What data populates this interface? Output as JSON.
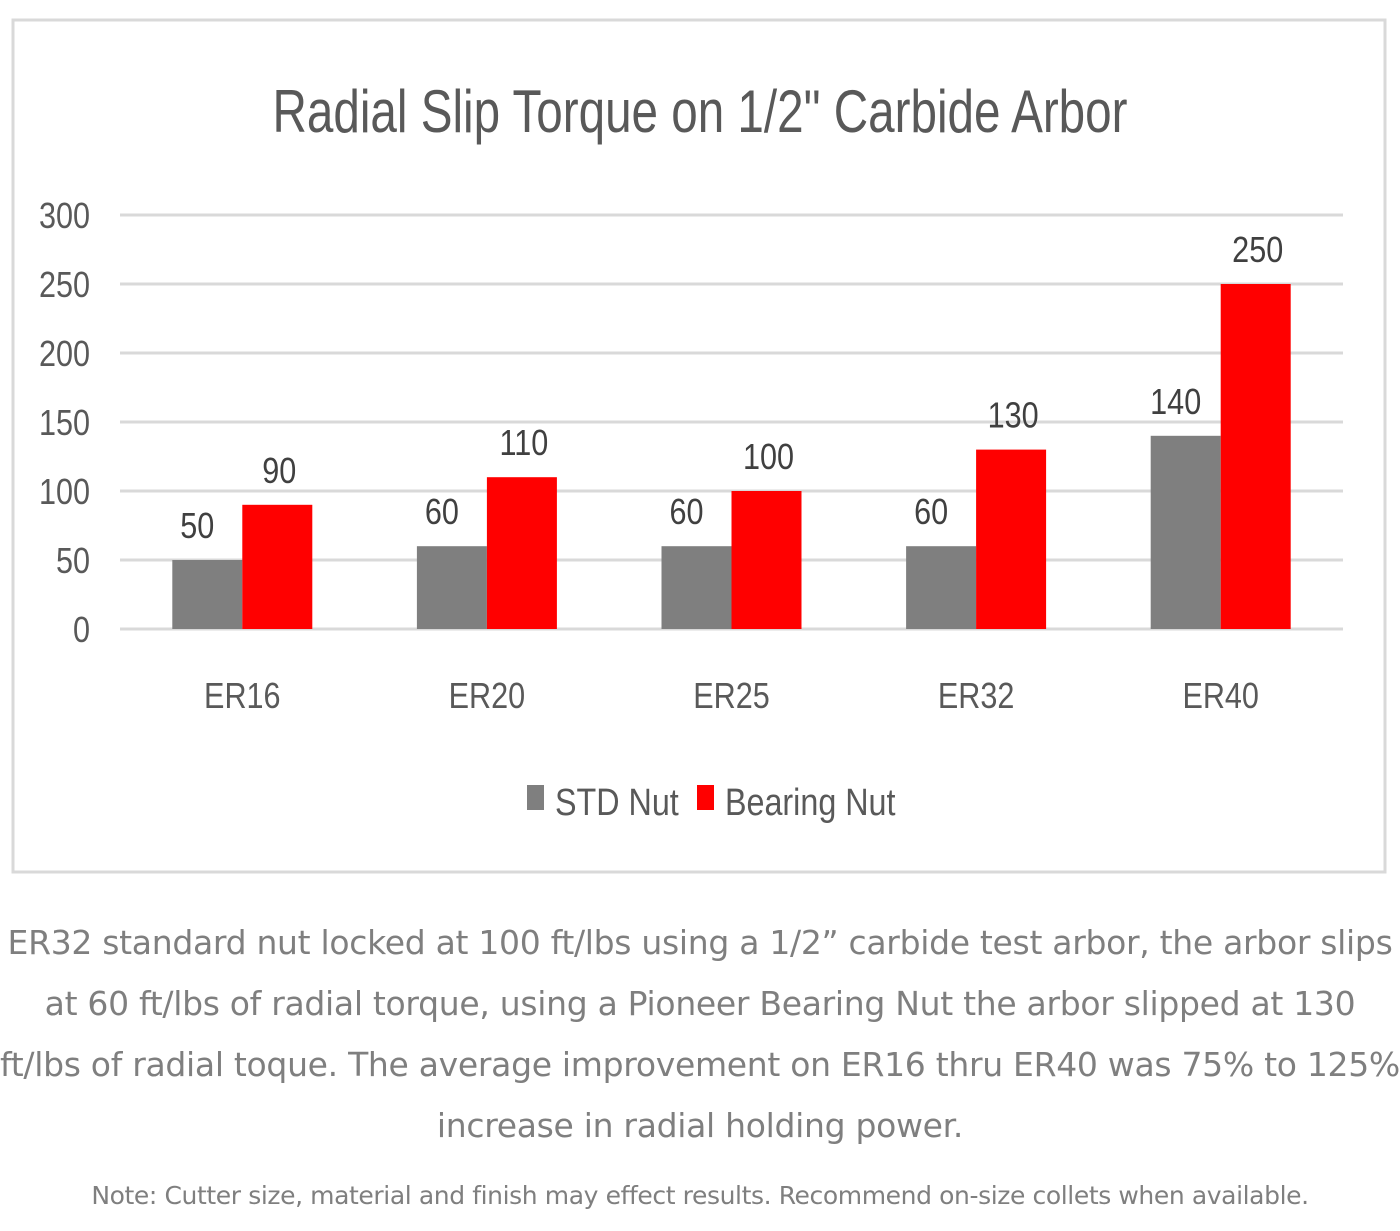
{
  "chart_data": {
    "type": "bar",
    "title": "Radial Slip Torque on 1/2\" Carbide Arbor",
    "xlabel": "",
    "ylabel": "",
    "categories": [
      "ER16",
      "ER20",
      "ER25",
      "ER32",
      "ER40"
    ],
    "series": [
      {
        "name": "STD Nut",
        "values": [
          50,
          60,
          60,
          60,
          140
        ],
        "color": "#7f7f7f"
      },
      {
        "name": "Bearing Nut",
        "values": [
          90,
          110,
          100,
          130,
          250
        ],
        "color": "#ff0000"
      }
    ],
    "ylim": [
      0,
      300
    ],
    "yticks": [
      0,
      50,
      100,
      150,
      200,
      250,
      300
    ],
    "grid": true,
    "legend": "bottom",
    "data_labels": true
  },
  "caption": {
    "body": "ER32 standard nut locked at 100 ft/lbs using a 1/2” carbide test arbor, the arbor slips at 60 ft/lbs of radial torque, using a Pioneer Bearing Nut the arbor slipped at 130 ft/lbs of radial toque.  The average improvement on ER16 thru ER40 was 75% to 125% increase in radial holding power.",
    "note": "Note: Cutter size, material and finish may effect results.  Recommend on-size collets when available."
  }
}
